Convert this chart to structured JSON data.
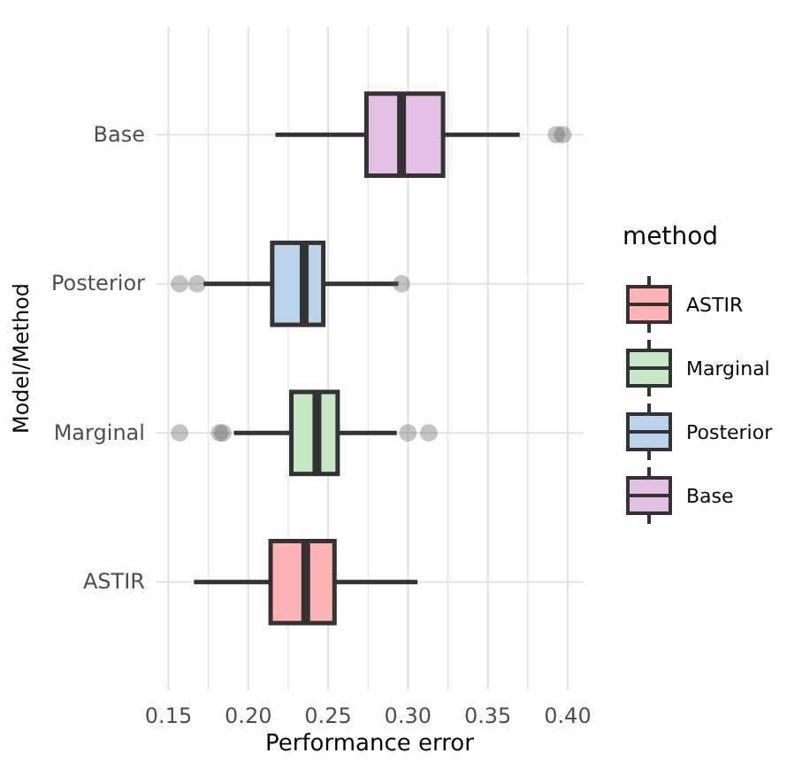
{
  "chart_data": {
    "type": "box",
    "orientation": "horizontal",
    "xlabel": "Performance error",
    "ylabel": "Model/Method",
    "legend_title": "method",
    "legend": "right",
    "grid": true,
    "categories": [
      "Base",
      "Posterior",
      "Marginal",
      "ASTIR"
    ],
    "xlim": [
      0.142,
      0.41
    ],
    "xticks": [
      0.15,
      {
        "value": 0.175,
        "label": null
      },
      {
        "value": 0.2,
        "label": "0.20"
      },
      {
        "value": 0.225,
        "label": null
      },
      0.25,
      {
        "value": 0.275,
        "label": null
      },
      {
        "value": 0.3,
        "label": "0.30"
      },
      {
        "value": 0.325,
        "label": null
      },
      0.35,
      {
        "value": 0.375,
        "label": null
      },
      {
        "value": 0.4,
        "label": "0.40"
      }
    ],
    "series": [
      {
        "name": "ASTIR",
        "color": "#ffb3b3",
        "boxes": [
          null,
          null,
          null,
          {
            "low": 0.166,
            "q1": 0.214,
            "median": 0.236,
            "q3": 0.254,
            "high": 0.306
          }
        ]
      },
      {
        "name": "Marginal",
        "color": "#c5e8c5",
        "boxes": [
          null,
          null,
          {
            "low": 0.191,
            "q1": 0.227,
            "median": 0.243,
            "q3": 0.256,
            "high": 0.293,
            "outliers": [
              0.157,
              0.182,
              0.184,
              0.3,
              0.313
            ]
          },
          null
        ]
      },
      {
        "name": "Posterior",
        "color": "#b9d4ea",
        "boxes": [
          null,
          {
            "low": 0.172,
            "q1": 0.215,
            "median": 0.235,
            "q3": 0.247,
            "high": 0.294,
            "outliers": [
              0.157,
              0.168,
              0.296
            ]
          },
          null,
          null
        ]
      },
      {
        "name": "Base",
        "color": "#e2bfe3",
        "boxes": [
          {
            "low": 0.217,
            "q1": 0.274,
            "median": 0.296,
            "q3": 0.322,
            "high": 0.37,
            "outliers": [
              0.393,
              0.397
            ]
          },
          null,
          null,
          null
        ]
      }
    ]
  }
}
